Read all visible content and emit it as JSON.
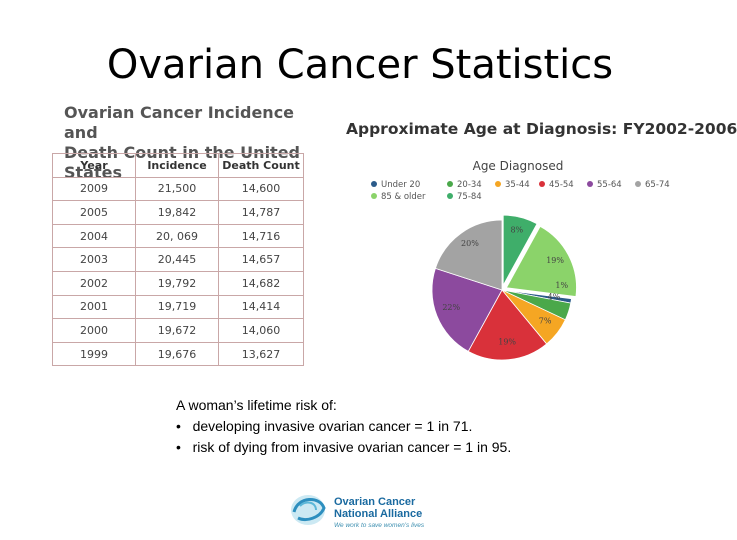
{
  "slide": {
    "title": "Ovarian Cancer Statistics"
  },
  "table": {
    "title_line1": "Ovarian Cancer Incidence and",
    "title_line2": "Death Count in the United States",
    "headers": [
      "Year",
      "Incidence",
      "Death Count"
    ],
    "rows": [
      [
        "2009",
        "21,500",
        "14,600"
      ],
      [
        "2005",
        "19,842",
        "14,787"
      ],
      [
        "2004",
        "20, 069",
        "14,716"
      ],
      [
        "2003",
        "20,445",
        "14,657"
      ],
      [
        "2002",
        "19,792",
        "14,682"
      ],
      [
        "2001",
        "19,719",
        "14,414"
      ],
      [
        "2000",
        "19,672",
        "14,060"
      ],
      [
        "1999",
        "19,676",
        "13,627"
      ]
    ]
  },
  "chart_data": {
    "type": "pie",
    "title": "Approximate Age at Diagnosis: FY2002-2006",
    "legend_title": "Age Diagnosed",
    "legend_position": "top",
    "slices": [
      {
        "label": "Under 20",
        "value": 1,
        "display": "1%",
        "color": "#2b5b8a"
      },
      {
        "label": "20-34",
        "value": 4,
        "display": "4%",
        "color": "#4aa84a"
      },
      {
        "label": "35-44",
        "value": 7,
        "display": "7%",
        "color": "#f5a623"
      },
      {
        "label": "45-54",
        "value": 19,
        "display": "19%",
        "color": "#d9313a"
      },
      {
        "label": "55-64",
        "value": 22,
        "display": "22%",
        "color": "#8c4a9e"
      },
      {
        "label": "65-74",
        "value": 20,
        "display": "20%",
        "color": "#a3a3a3"
      },
      {
        "label": "75-84",
        "value": 8,
        "display": "8%",
        "color": "#3fae6a"
      },
      {
        "label": "85 & older",
        "value": 19,
        "display": "19%",
        "color": "#8bd36a"
      }
    ]
  },
  "risk": {
    "intro": "A woman’s lifetime risk of:",
    "items": [
      "developing invasive ovarian cancer = 1 in 71.",
      "risk of dying from invasive ovarian cancer = 1 in 95."
    ]
  },
  "logo": {
    "line1": "Ovarian Cancer",
    "line2": "National Alliance",
    "tagline": "We work to save women’s lives"
  }
}
